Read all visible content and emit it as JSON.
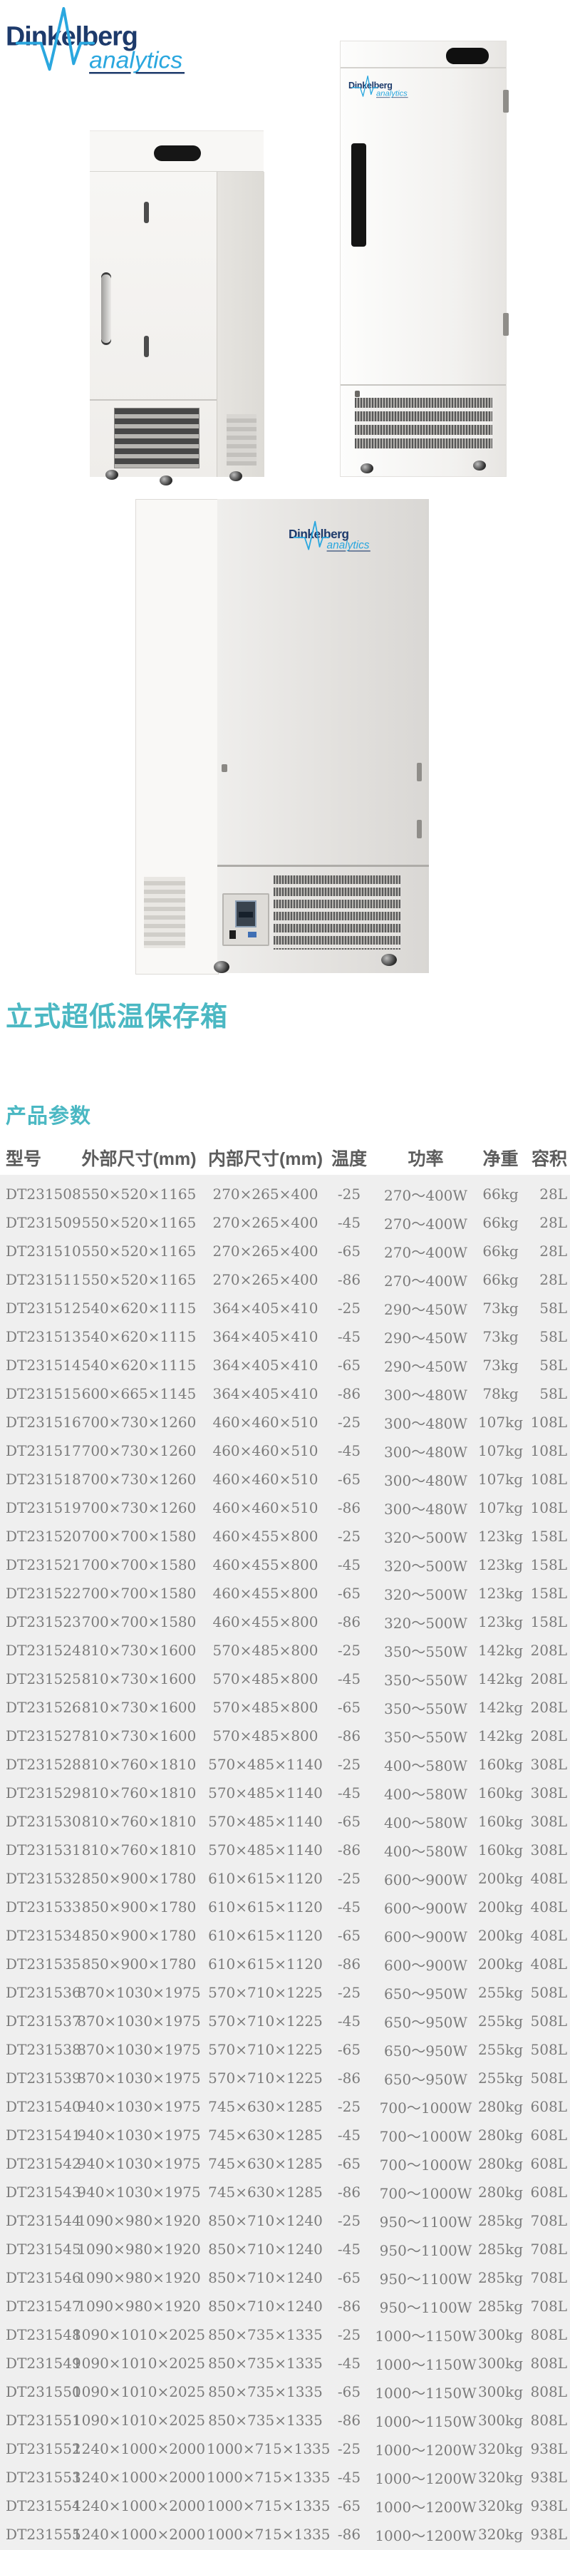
{
  "brand": {
    "name": "Dinkelberg",
    "sub": "analytics"
  },
  "page": {
    "title": "立式超低温保存箱",
    "params_heading": "产品参数"
  },
  "colors": {
    "accent_teal": "#4bb8c3",
    "brand_navy": "#1d3a6b",
    "brand_blue": "#2aa7df",
    "table_background": "#efefef",
    "table_text": "#7b7b7b",
    "header_text": "#5d5d5d"
  },
  "table": {
    "headers": [
      "型号",
      "外部尺寸(mm)",
      "内部尺寸(mm)",
      "温度",
      "功率",
      "净重",
      "容积"
    ],
    "rows": [
      [
        "DT231508",
        "550×520×1165",
        "270×265×400",
        "-25",
        "270～400W",
        "66kg",
        "28L"
      ],
      [
        "DT231509",
        "550×520×1165",
        "270×265×400",
        "-45",
        "270～400W",
        "66kg",
        "28L"
      ],
      [
        "DT231510",
        "550×520×1165",
        "270×265×400",
        "-65",
        "270～400W",
        "66kg",
        "28L"
      ],
      [
        "DT231511",
        "550×520×1165",
        "270×265×400",
        "-86",
        "270～400W",
        "66kg",
        "28L"
      ],
      [
        "DT231512",
        "540×620×1115",
        "364×405×410",
        "-25",
        "290～450W",
        "73kg",
        "58L"
      ],
      [
        "DT231513",
        "540×620×1115",
        "364×405×410",
        "-45",
        "290～450W",
        "73kg",
        "58L"
      ],
      [
        "DT231514",
        "540×620×1115",
        "364×405×410",
        "-65",
        "290～450W",
        "73kg",
        "58L"
      ],
      [
        "DT231515",
        "600×665×1145",
        "364×405×410",
        "-86",
        "300～480W",
        "78kg",
        "58L"
      ],
      [
        "DT231516",
        "700×730×1260",
        "460×460×510",
        "-25",
        "300～480W",
        "107kg",
        "108L"
      ],
      [
        "DT231517",
        "700×730×1260",
        "460×460×510",
        "-45",
        "300～480W",
        "107kg",
        "108L"
      ],
      [
        "DT231518",
        "700×730×1260",
        "460×460×510",
        "-65",
        "300～480W",
        "107kg",
        "108L"
      ],
      [
        "DT231519",
        "700×730×1260",
        "460×460×510",
        "-86",
        "300～480W",
        "107kg",
        "108L"
      ],
      [
        "DT231520",
        "700×700×1580",
        "460×455×800",
        "-25",
        "320～500W",
        "123kg",
        "158L"
      ],
      [
        "DT231521",
        "700×700×1580",
        "460×455×800",
        "-45",
        "320～500W",
        "123kg",
        "158L"
      ],
      [
        "DT231522",
        "700×700×1580",
        "460×455×800",
        "-65",
        "320～500W",
        "123kg",
        "158L"
      ],
      [
        "DT231523",
        "700×700×1580",
        "460×455×800",
        "-86",
        "320～500W",
        "123kg",
        "158L"
      ],
      [
        "DT231524",
        "810×730×1600",
        "570×485×800",
        "-25",
        "350～550W",
        "142kg",
        "208L"
      ],
      [
        "DT231525",
        "810×730×1600",
        "570×485×800",
        "-45",
        "350～550W",
        "142kg",
        "208L"
      ],
      [
        "DT231526",
        "810×730×1600",
        "570×485×800",
        "-65",
        "350～550W",
        "142kg",
        "208L"
      ],
      [
        "DT231527",
        "810×730×1600",
        "570×485×800",
        "-86",
        "350～550W",
        "142kg",
        "208L"
      ],
      [
        "DT231528",
        "810×760×1810",
        "570×485×1140",
        "-25",
        "400～580W",
        "160kg",
        "308L"
      ],
      [
        "DT231529",
        "810×760×1810",
        "570×485×1140",
        "-45",
        "400～580W",
        "160kg",
        "308L"
      ],
      [
        "DT231530",
        "810×760×1810",
        "570×485×1140",
        "-65",
        "400～580W",
        "160kg",
        "308L"
      ],
      [
        "DT231531",
        "810×760×1810",
        "570×485×1140",
        "-86",
        "400～580W",
        "160kg",
        "308L"
      ],
      [
        "DT231532",
        "850×900×1780",
        "610×615×1120",
        "-25",
        "600～900W",
        "200kg",
        "408L"
      ],
      [
        "DT231533",
        "850×900×1780",
        "610×615×1120",
        "-45",
        "600～900W",
        "200kg",
        "408L"
      ],
      [
        "DT231534",
        "850×900×1780",
        "610×615×1120",
        "-65",
        "600～900W",
        "200kg",
        "408L"
      ],
      [
        "DT231535",
        "850×900×1780",
        "610×615×1120",
        "-86",
        "600～900W",
        "200kg",
        "408L"
      ],
      [
        "DT231536",
        "870×1030×1975",
        "570×710×1225",
        "-25",
        "650～950W",
        "255kg",
        "508L"
      ],
      [
        "DT231537",
        "870×1030×1975",
        "570×710×1225",
        "-45",
        "650～950W",
        "255kg",
        "508L"
      ],
      [
        "DT231538",
        "870×1030×1975",
        "570×710×1225",
        "-65",
        "650～950W",
        "255kg",
        "508L"
      ],
      [
        "DT231539",
        "870×1030×1975",
        "570×710×1225",
        "-86",
        "650～950W",
        "255kg",
        "508L"
      ],
      [
        "DT231540",
        "940×1030×1975",
        "745×630×1285",
        "-25",
        "700～1000W",
        "280kg",
        "608L"
      ],
      [
        "DT231541",
        "940×1030×1975",
        "745×630×1285",
        "-45",
        "700～1000W",
        "280kg",
        "608L"
      ],
      [
        "DT231542",
        "940×1030×1975",
        "745×630×1285",
        "-65",
        "700～1000W",
        "280kg",
        "608L"
      ],
      [
        "DT231543",
        "940×1030×1975",
        "745×630×1285",
        "-86",
        "700～1000W",
        "280kg",
        "608L"
      ],
      [
        "DT231544",
        "1090×980×1920",
        "850×710×1240",
        "-25",
        "950～1100W",
        "285kg",
        "708L"
      ],
      [
        "DT231545",
        "1090×980×1920",
        "850×710×1240",
        "-45",
        "950～1100W",
        "285kg",
        "708L"
      ],
      [
        "DT231546",
        "1090×980×1920",
        "850×710×1240",
        "-65",
        "950～1100W",
        "285kg",
        "708L"
      ],
      [
        "DT231547",
        "1090×980×1920",
        "850×710×1240",
        "-86",
        "950～1100W",
        "285kg",
        "708L"
      ],
      [
        "DT231548",
        "1090×1010×2025",
        "850×735×1335",
        "-25",
        "1000～1150W",
        "300kg",
        "808L"
      ],
      [
        "DT231549",
        "1090×1010×2025",
        "850×735×1335",
        "-45",
        "1000～1150W",
        "300kg",
        "808L"
      ],
      [
        "DT231550",
        "1090×1010×2025",
        "850×735×1335",
        "-65",
        "1000～1150W",
        "300kg",
        "808L"
      ],
      [
        "DT231551",
        "1090×1010×2025",
        "850×735×1335",
        "-86",
        "1000～1150W",
        "300kg",
        "808L"
      ],
      [
        "DT231552",
        "1240×1000×2000",
        "1000×715×1335",
        "-25",
        "1000～1200W",
        "320kg",
        "938L"
      ],
      [
        "DT231553",
        "1240×1000×2000",
        "1000×715×1335",
        "-45",
        "1000～1200W",
        "320kg",
        "938L"
      ],
      [
        "DT231554",
        "1240×1000×2000",
        "1000×715×1335",
        "-65",
        "1000～1200W",
        "320kg",
        "938L"
      ],
      [
        "DT231555",
        "1240×1000×2000",
        "1000×715×1335",
        "-86",
        "1000～1200W",
        "320kg",
        "938L"
      ]
    ]
  }
}
